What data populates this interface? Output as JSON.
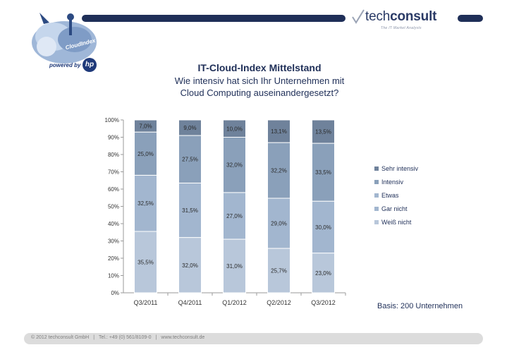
{
  "header": {
    "badge_label": "CloudIndex",
    "powered_by": "powered by",
    "hp_label": "hp",
    "brand_name_light": "tech",
    "brand_name_bold": "consult",
    "brand_tagline": "The IT Market Analysts"
  },
  "colors": {
    "header_bar": "#1f2f58",
    "text": "#1f2f58",
    "footer": "#dcdcdc"
  },
  "chart_data": {
    "type": "bar",
    "stacked": true,
    "title": "IT-Cloud-Index Mittelstand",
    "subtitle_lines": [
      "Wie intensiv hat sich Ihr Unternehmen mit",
      "Cloud Computing auseinandergesetzt?"
    ],
    "categories": [
      "Q3/2011",
      "Q4/2011",
      "Q1/2012",
      "Q2/2012",
      "Q3/2012"
    ],
    "series": [
      {
        "name": "Weiß nicht",
        "color": "#b8c7da",
        "values": [
          35.5,
          32.0,
          31.0,
          25.7,
          23.0
        ],
        "labels": [
          "35,5%",
          "32,0%",
          "31,0%",
          "25,7%",
          "23,0%"
        ]
      },
      {
        "name": "Gar nicht",
        "color": "#a2b6cf",
        "values": [
          0,
          0,
          0,
          0,
          0
        ],
        "labels": [
          "",
          "",
          "",
          "",
          ""
        ]
      },
      {
        "name": "Etwas",
        "color": "#a2b6cf",
        "values": [
          32.5,
          31.5,
          27.0,
          29.0,
          30.0
        ],
        "labels": [
          "32,5%",
          "31,5%",
          "27,0%",
          "29,0%",
          "30,0%"
        ]
      },
      {
        "name": "Intensiv",
        "color": "#8aa0ba",
        "values": [
          25.0,
          27.5,
          32.0,
          32.2,
          33.5
        ],
        "labels": [
          "25,0%",
          "27,5%",
          "32,0%",
          "32,2%",
          "33,5%"
        ]
      },
      {
        "name": "Sehr intensiv",
        "color": "#6f829b",
        "values": [
          7.0,
          9.0,
          10.0,
          13.1,
          13.5
        ],
        "labels": [
          "7,0%",
          "9,0%",
          "10,0%",
          "13,1%",
          "13,5%"
        ]
      }
    ],
    "legend_order": [
      "Sehr intensiv",
      "Intensiv",
      "Etwas",
      "Gar nicht",
      "Weiß nicht"
    ],
    "yticks": [
      "0%",
      "10%",
      "20%",
      "30%",
      "40%",
      "50%",
      "60%",
      "70%",
      "80%",
      "90%",
      "100%"
    ],
    "ylim": [
      0,
      100
    ],
    "legend_position": "right",
    "grid": false
  },
  "basis_text": "Basis: 200 Unternehmen",
  "footer": {
    "copyright": "© 2012 techconsult GmbH",
    "phone": "Tel.: +49 (0) 561/8109-0",
    "website": "www.techconsult.de",
    "separator": "|"
  }
}
